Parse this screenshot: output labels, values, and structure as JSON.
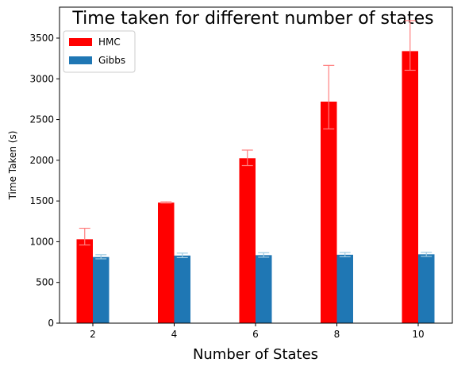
{
  "chart_data": {
    "type": "bar",
    "title": "Time taken for different number of states",
    "xlabel": "Number of States",
    "ylabel": "Time Taken (s)",
    "categories": [
      "2",
      "4",
      "6",
      "8",
      "10"
    ],
    "ylim": [
      0,
      3880
    ],
    "yticks": [
      0,
      500,
      1000,
      1500,
      2000,
      2500,
      3000,
      3500
    ],
    "grid": false,
    "legend_position": "top-left",
    "series": [
      {
        "name": "HMC",
        "color": "#ff0000",
        "error_color": "#ff8080",
        "values": [
          1030,
          1480,
          2025,
          2720,
          3340
        ],
        "error_low": [
          960,
          1475,
          1935,
          2385,
          3105
        ],
        "error_high": [
          1165,
          1490,
          2125,
          3165,
          3715
        ]
      },
      {
        "name": "Gibbs",
        "color": "#1f77b4",
        "error_color": "#9ecae1",
        "values": [
          812,
          830,
          835,
          840,
          845
        ],
        "error_low": [
          790,
          805,
          810,
          815,
          820
        ],
        "error_high": [
          840,
          860,
          865,
          868,
          870
        ]
      }
    ]
  }
}
